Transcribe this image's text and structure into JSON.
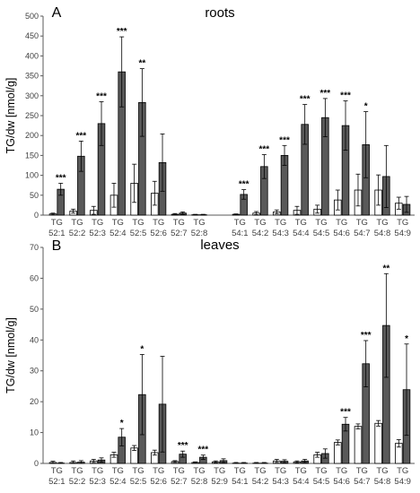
{
  "chart_data": [
    {
      "type": "bar",
      "panel_label": "A",
      "title": "roots",
      "ylabel": "TG/dw [nmol/g]",
      "ylim": [
        0,
        500
      ],
      "yticks": [
        0,
        50,
        100,
        150,
        200,
        250,
        300,
        350,
        400,
        450,
        500
      ],
      "grid": false,
      "categories": [
        [
          "TG",
          "52:1"
        ],
        [
          "TG",
          "52:2"
        ],
        [
          "TG",
          "52:3"
        ],
        [
          "TG",
          "52:4"
        ],
        [
          "TG",
          "52:5"
        ],
        [
          "TG",
          "52:6"
        ],
        [
          "TG",
          "52:7"
        ],
        [
          "TG",
          "52:8"
        ],
        [
          "TG",
          "54:1"
        ],
        [
          "TG",
          "54:2"
        ],
        [
          "TG",
          "54:3"
        ],
        [
          "TG",
          "54:4"
        ],
        [
          "TG",
          "54:5"
        ],
        [
          "TG",
          "54:6"
        ],
        [
          "TG",
          "54:7"
        ],
        [
          "TG",
          "54:8"
        ],
        [
          "TG",
          "54:9"
        ]
      ],
      "gap_after_index": 7,
      "series": [
        {
          "color": "#ffffff",
          "values": [
            3,
            10,
            12,
            50,
            80,
            55,
            2,
            1,
            2,
            5,
            8,
            12,
            15,
            38,
            63,
            63,
            30
          ],
          "errors": [
            2,
            5,
            10,
            30,
            48,
            30,
            2,
            1,
            1,
            4,
            5,
            10,
            10,
            25,
            40,
            38,
            15
          ]
        },
        {
          "color": "#595959",
          "values": [
            65,
            148,
            230,
            360,
            283,
            132,
            5,
            1,
            52,
            122,
            150,
            228,
            245,
            225,
            177,
            97,
            27
          ],
          "errors": [
            15,
            38,
            55,
            88,
            85,
            72,
            3,
            1,
            12,
            30,
            25,
            50,
            48,
            62,
            83,
            78,
            20
          ]
        }
      ],
      "significance": [
        "***",
        "***",
        "***",
        "***",
        "**",
        "",
        "",
        "",
        "***",
        "***",
        "***",
        "***",
        "***",
        "***",
        "*",
        "",
        ""
      ]
    },
    {
      "type": "bar",
      "panel_label": "B",
      "title": "leaves",
      "ylabel": "TG/dw [nmol/g]",
      "ylim": [
        0,
        70
      ],
      "yticks": [
        0,
        10,
        20,
        30,
        40,
        50,
        60,
        70
      ],
      "grid": false,
      "categories": [
        [
          "TG",
          "52:1"
        ],
        [
          "TG",
          "52:2"
        ],
        [
          "TG",
          "52:3"
        ],
        [
          "TG",
          "52:4"
        ],
        [
          "TG",
          "52:5"
        ],
        [
          "TG",
          "52:6"
        ],
        [
          "TG",
          "52:7"
        ],
        [
          "TG",
          "52:8"
        ],
        [
          "TG",
          "52:9"
        ],
        [
          "TG",
          "54:1"
        ],
        [
          "TG",
          "54:2"
        ],
        [
          "TG",
          "54:3"
        ],
        [
          "TG",
          "54:4"
        ],
        [
          "TG",
          "54:5"
        ],
        [
          "TG",
          "54:6"
        ],
        [
          "TG",
          "54:7"
        ],
        [
          "TG",
          "54:8"
        ],
        [
          "TG",
          "54:9"
        ]
      ],
      "gap_after_index": -1,
      "series": [
        {
          "color": "#ffffff",
          "values": [
            0.3,
            0.3,
            0.8,
            2.8,
            5.0,
            3.5,
            0.6,
            0.3,
            0.5,
            0.1,
            0.1,
            0.8,
            0.5,
            2.8,
            6.8,
            12.0,
            13.0,
            6.5
          ],
          "errors": [
            0.4,
            0.5,
            0.5,
            0.8,
            0.8,
            0.8,
            0.3,
            0.2,
            0.3,
            0.2,
            0.2,
            0.5,
            0.3,
            0.8,
            0.8,
            0.8,
            0.9,
            1.2
          ]
        },
        {
          "color": "#595959",
          "values": [
            0.1,
            0.4,
            1.1,
            8.5,
            22.3,
            19.2,
            3.0,
            2.0,
            0.9,
            0.1,
            0.1,
            0.7,
            0.8,
            3.2,
            12.7,
            32.3,
            44.7,
            23.9
          ],
          "errors": [
            0.2,
            0.5,
            0.7,
            2.8,
            13.0,
            15.5,
            1.0,
            0.7,
            0.6,
            0.2,
            0.2,
            0.5,
            0.5,
            1.5,
            2.2,
            7.5,
            16.8,
            14.8
          ]
        }
      ],
      "significance": [
        "",
        "",
        "",
        "*",
        "*",
        "",
        "***",
        "***",
        "",
        "",
        "",
        "",
        "",
        "",
        "***",
        "***",
        "**",
        "*"
      ]
    }
  ]
}
